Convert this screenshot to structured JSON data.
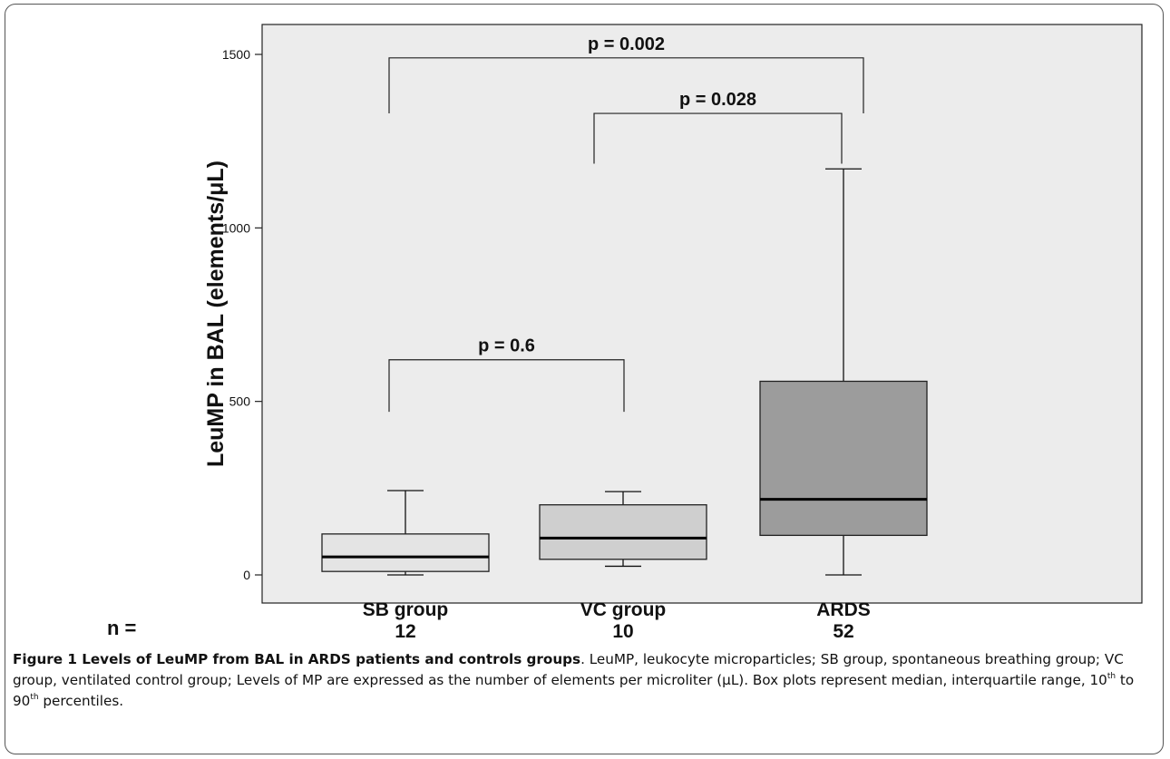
{
  "chart_data": {
    "type": "box",
    "ylabel": "LeuMP in BAL (elements/μL)",
    "ylim": [
      -80,
      1560
    ],
    "yticks": [
      0,
      500,
      1000,
      1500
    ],
    "n_label": "n =",
    "categories": [
      "SB group",
      "VC group",
      "ARDS"
    ],
    "counts": [
      "12",
      "10",
      "52"
    ],
    "boxes": [
      {
        "name": "SB group",
        "whisker_low": 0,
        "q1": 10,
        "median": 52,
        "q3": 118,
        "whisker_high": 243,
        "fill": "#e4e4e4"
      },
      {
        "name": "VC group",
        "whisker_low": 25,
        "q1": 45,
        "median": 106,
        "q3": 202,
        "whisker_high": 240,
        "fill": "#cfcfcf"
      },
      {
        "name": "ARDS",
        "whisker_low": 0,
        "q1": 114,
        "median": 218,
        "q3": 558,
        "whisker_high": 1170,
        "fill": "#9c9c9c"
      }
    ],
    "comparisons": [
      {
        "from": 0,
        "to": 1,
        "label": "p = 0.6",
        "bar_y": 620,
        "left_end": 470,
        "right_end": 470
      },
      {
        "from": 1,
        "to": 2,
        "label": "p = 0.028",
        "bar_y": 1330,
        "left_end": 1185,
        "right_end": 1185
      },
      {
        "from": 0,
        "to": 2,
        "label": "p = 0.002",
        "bar_y": 1490,
        "left_end": 1330,
        "right_end": 1330
      }
    ],
    "grid": false,
    "background": "#ececec"
  },
  "caption": {
    "title": "Figure 1 Levels of LeuMP from BAL in ARDS patients and controls groups",
    "body_1": ". LeuMP, leukocyte microparticles; SB group, spontaneous breathing group; VC group, ventilated control group; Levels of MP are expressed as the number of elements per microliter (μL). Box plots represent median, interquartile range, 10",
    "sup_1": "th",
    "body_2": " to 90",
    "sup_2": "th",
    "body_3": " percentiles."
  }
}
